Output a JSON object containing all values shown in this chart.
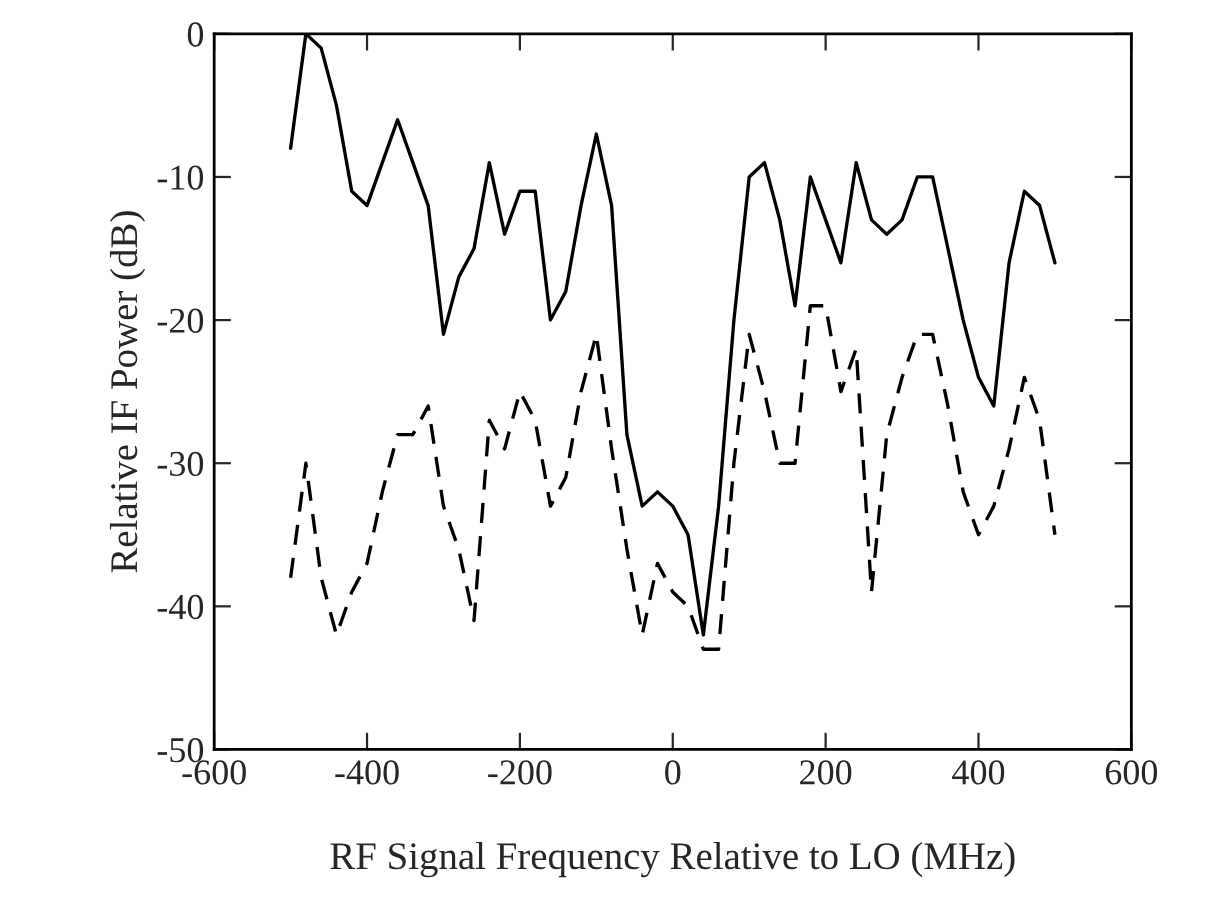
{
  "chart_data": {
    "type": "line",
    "xlabel": "RF Signal Frequency Relative to LO (MHz)",
    "ylabel": "Relative IF Power (dB)",
    "x": [
      -500,
      -480,
      -460,
      -440,
      -420,
      -400,
      -380,
      -360,
      -340,
      -320,
      -300,
      -280,
      -260,
      -240,
      -220,
      -200,
      -180,
      -160,
      -140,
      -120,
      -100,
      -80,
      -60,
      -40,
      -20,
      0,
      20,
      40,
      60,
      80,
      100,
      120,
      140,
      160,
      180,
      200,
      220,
      240,
      260,
      280,
      300,
      320,
      340,
      360,
      380,
      400,
      420,
      440,
      460,
      480,
      500
    ],
    "series": [
      {
        "color": "#000000",
        "line_style": "solid",
        "values": [
          -8,
          0,
          -1,
          -5,
          -11,
          -12,
          -9,
          -6,
          -9,
          -12,
          -21,
          -17,
          -15,
          -9,
          -14,
          -11,
          -11,
          -20,
          -18,
          -12,
          -7,
          -12,
          -28,
          -33,
          -32,
          -33,
          -35,
          -42,
          -33,
          -20,
          -10,
          -9,
          -13,
          -19,
          -10,
          -13,
          -16,
          -9,
          -13,
          -14,
          -13,
          -10,
          -10,
          -15,
          -20,
          -24,
          -26,
          -16,
          -11,
          -12,
          -16
        ]
      },
      {
        "color": "#000000",
        "line_style": "dashed",
        "values": [
          -38,
          -30,
          -38,
          -42,
          -39,
          -37,
          -32,
          -28,
          -28,
          -26,
          -33,
          -36,
          -41,
          -27,
          -29,
          -25,
          -27,
          -33,
          -31,
          -25,
          -21,
          -29,
          -36,
          -42,
          -37,
          -39,
          -40,
          -43,
          -43,
          -30,
          -21,
          -25,
          -30,
          -30,
          -19,
          -19,
          -25,
          -22,
          -39,
          -28,
          -24,
          -21,
          -21,
          -26,
          -32,
          -35,
          -33,
          -29,
          -24,
          -27,
          -35
        ]
      }
    ],
    "xlim": [
      -600,
      600
    ],
    "xticks": [
      -600,
      -400,
      -200,
      0,
      200,
      400,
      600
    ],
    "ylim": [
      -50,
      0
    ],
    "yticks": [
      -50,
      -40,
      -30,
      -20,
      -10,
      0
    ],
    "grid": false,
    "legend": false,
    "marker": "none"
  }
}
